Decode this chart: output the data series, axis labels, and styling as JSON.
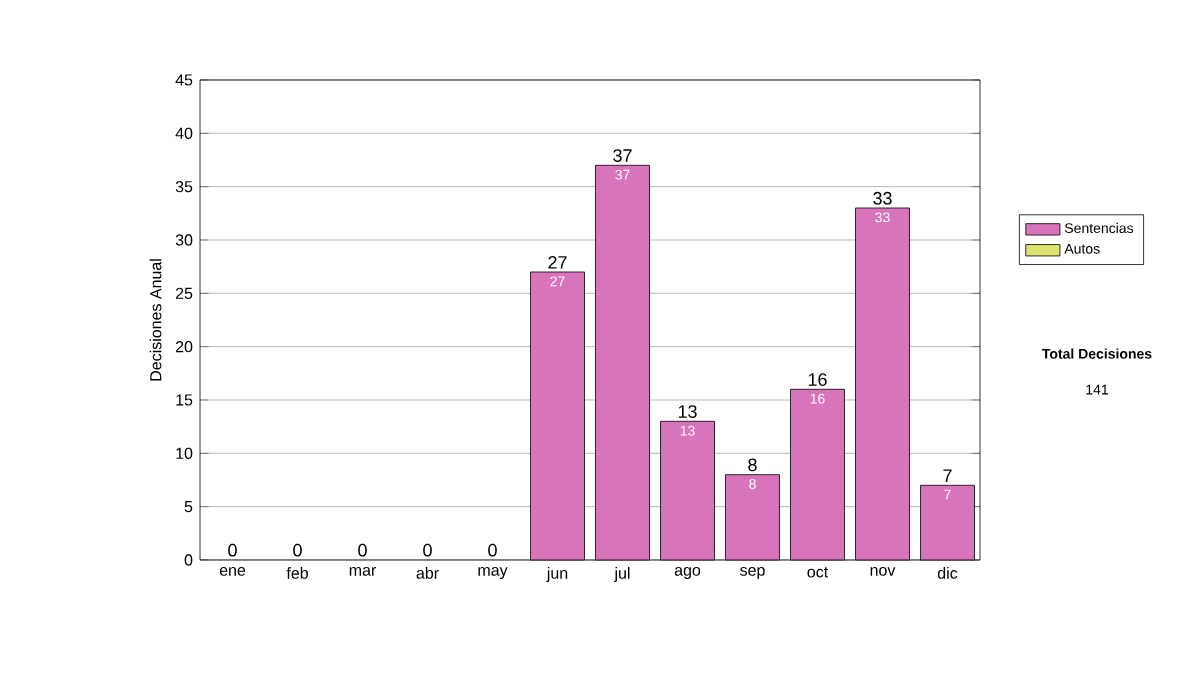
{
  "chart_data": {
    "type": "bar",
    "stacked": true,
    "ylabel": "Decisiones Anual",
    "categories": [
      "ene",
      "feb",
      "mar",
      "abr",
      "may",
      "jun",
      "jul",
      "ago",
      "sep",
      "oct",
      "nov",
      "dic"
    ],
    "series": [
      {
        "name": "Sentencias",
        "color": "#d874bc",
        "values": [
          0,
          0,
          0,
          0,
          0,
          27,
          37,
          13,
          8,
          16,
          33,
          7
        ],
        "value_labels": [
          null,
          null,
          null,
          null,
          null,
          "27",
          "37",
          "13",
          "8",
          "16",
          "33",
          "7"
        ]
      },
      {
        "name": "Autos",
        "color": "#dde36f",
        "values": [
          0,
          0,
          0,
          0,
          0,
          0,
          0,
          0,
          0,
          0,
          0,
          0
        ]
      }
    ],
    "totals": [
      "0",
      "0",
      "0",
      "0",
      "0",
      "27",
      "37",
      "13",
      "8",
      "16",
      "33",
      "7"
    ],
    "ylim": [
      0,
      45
    ],
    "yticks": [
      0,
      5,
      10,
      15,
      20,
      25,
      30,
      35,
      40,
      45
    ],
    "grid": "y",
    "legend": "right",
    "annotations": [
      "Total Decisiones",
      "141"
    ]
  }
}
